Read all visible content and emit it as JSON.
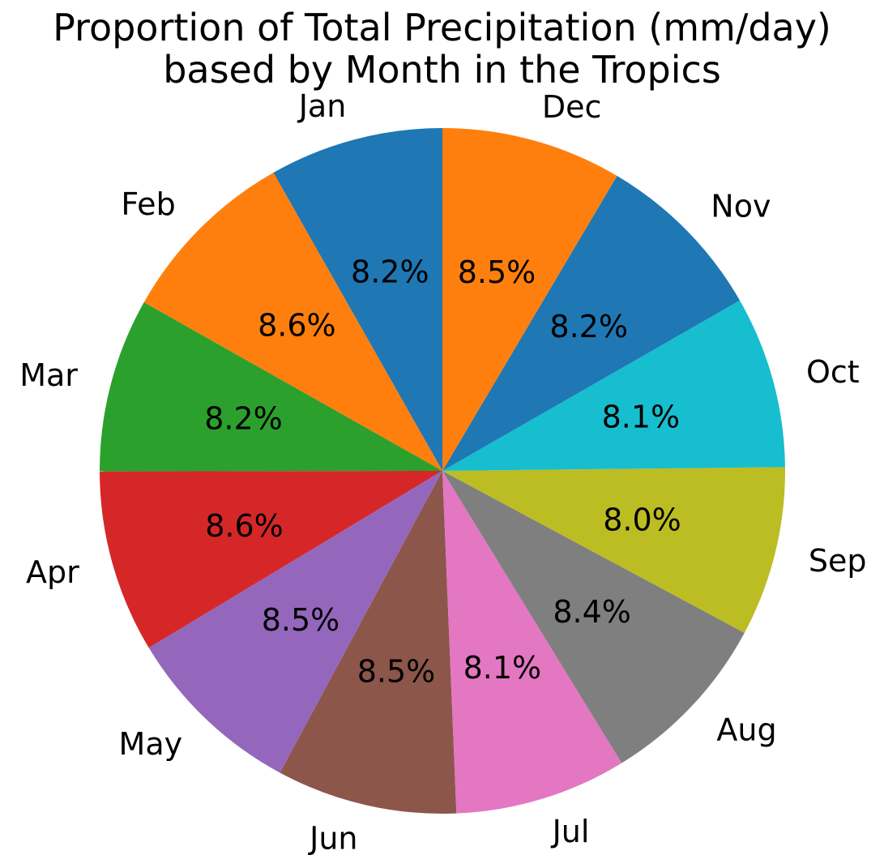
{
  "chart_data": {
    "type": "pie",
    "title_lines": [
      "Proportion of Total Precipitation (mm/day)",
      "based by Month in the Tropics"
    ],
    "start_angle_deg": 90,
    "direction": "clockwise-from-top-reversed",
    "slices": [
      {
        "label": "Jan",
        "value": 8.2,
        "value_label": "8.2%",
        "color": "#1f77b4"
      },
      {
        "label": "Feb",
        "value": 8.6,
        "value_label": "8.6%",
        "color": "#ff7f0e"
      },
      {
        "label": "Mar",
        "value": 8.2,
        "value_label": "8.2%",
        "color": "#2ca02c"
      },
      {
        "label": "Apr",
        "value": 8.6,
        "value_label": "8.6%",
        "color": "#d62728"
      },
      {
        "label": "May",
        "value": 8.5,
        "value_label": "8.5%",
        "color": "#9467bd"
      },
      {
        "label": "Jun",
        "value": 8.5,
        "value_label": "8.5%",
        "color": "#8c564b"
      },
      {
        "label": "Jul",
        "value": 8.1,
        "value_label": "8.1%",
        "color": "#e377c2"
      },
      {
        "label": "Aug",
        "value": 8.4,
        "value_label": "8.4%",
        "color": "#7f7f7f"
      },
      {
        "label": "Sep",
        "value": 8.0,
        "value_label": "8.0%",
        "color": "#bcbd22"
      },
      {
        "label": "Oct",
        "value": 8.1,
        "value_label": "8.1%",
        "color": "#17becf"
      },
      {
        "label": "Nov",
        "value": 8.2,
        "value_label": "8.2%",
        "color": "#1f77b4"
      },
      {
        "label": "Dec",
        "value": 8.5,
        "value_label": "8.5%",
        "color": "#ff7f0e"
      }
    ]
  }
}
